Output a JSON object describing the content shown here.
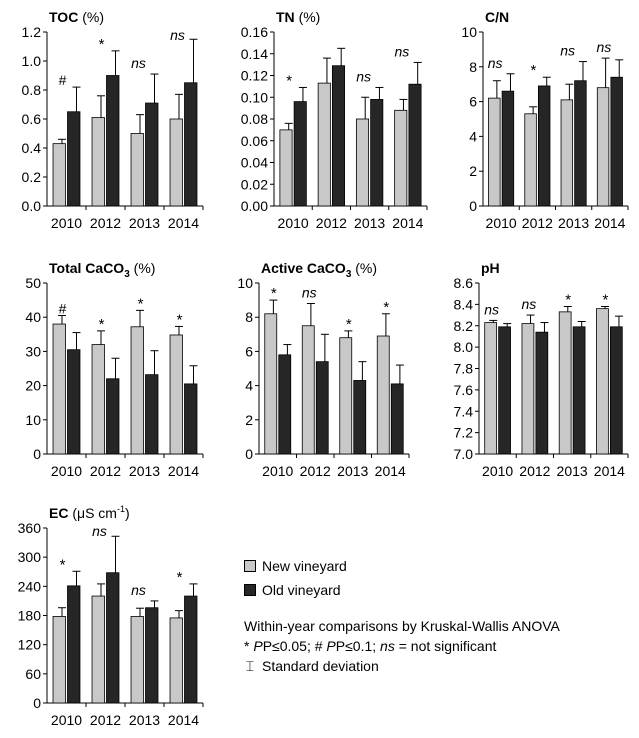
{
  "colors": {
    "new": "#c8c8c8",
    "old": "#262626"
  },
  "legend": {
    "new_label": "New vineyard",
    "old_label": "Old vineyard",
    "note_line1": "Within-year comparisons by Kruskal-Wallis ANOVA",
    "p05_symbol": "* ",
    "p05_text": "P≤0.05; # ",
    "p10_text": "P≤0.1; ",
    "ns_text": "ns",
    "ns_desc": " = not significant",
    "sd_glyph": "⌶",
    "sd_text": "Standard deviation"
  },
  "chart_data": [
    {
      "type": "bar",
      "title": "TOC",
      "unit": "(%)",
      "categories": [
        "2010",
        "2012",
        "2013",
        "2014"
      ],
      "ylim": [
        0,
        1.2
      ],
      "yticks": [
        "0.0",
        "0.2",
        "0.4",
        "0.6",
        "0.8",
        "1.0",
        "1.2"
      ],
      "series": [
        {
          "key": "new",
          "values": [
            0.43,
            0.61,
            0.5,
            0.6
          ],
          "errors": [
            0.03,
            0.15,
            0.13,
            0.17
          ]
        },
        {
          "key": "old",
          "values": [
            0.65,
            0.9,
            0.71,
            0.85
          ],
          "errors": [
            0.17,
            0.17,
            0.2,
            0.3
          ]
        }
      ],
      "annotations": [
        "#",
        "*",
        "ns",
        "ns"
      ]
    },
    {
      "type": "bar",
      "title": "TN",
      "unit": "(%)",
      "categories": [
        "2010",
        "2012",
        "2013",
        "2014"
      ],
      "ylim": [
        0,
        0.16
      ],
      "yticks": [
        "0.00",
        "0.02",
        "0.04",
        "0.06",
        "0.08",
        "0.10",
        "0.12",
        "0.14",
        "0.16"
      ],
      "series": [
        {
          "key": "new",
          "values": [
            0.07,
            0.113,
            0.08,
            0.088
          ],
          "errors": [
            0.006,
            0.023,
            0.02,
            0.01
          ]
        },
        {
          "key": "old",
          "values": [
            0.096,
            0.129,
            0.098,
            0.112
          ],
          "errors": [
            0.013,
            0.016,
            0.011,
            0.02
          ]
        }
      ],
      "annotations": [
        "*",
        "",
        "ns",
        "ns"
      ]
    },
    {
      "type": "bar",
      "title": "C/N",
      "unit": "",
      "categories": [
        "2010",
        "2012",
        "2013",
        "2014"
      ],
      "ylim": [
        0,
        10
      ],
      "yticks": [
        "0",
        "2",
        "4",
        "6",
        "8",
        "10"
      ],
      "series": [
        {
          "key": "new",
          "values": [
            6.2,
            5.3,
            6.1,
            6.8
          ],
          "errors": [
            1.0,
            0.4,
            0.9,
            1.7
          ]
        },
        {
          "key": "old",
          "values": [
            6.6,
            6.9,
            7.2,
            7.4
          ],
          "errors": [
            1.0,
            0.5,
            1.1,
            1.0
          ]
        }
      ],
      "annotations": [
        "ns",
        "*",
        "ns",
        "ns"
      ]
    },
    {
      "type": "bar",
      "title": "Total CaCO",
      "title_sub": "3",
      "unit": "(%)",
      "categories": [
        "2010",
        "2012",
        "2013",
        "2014"
      ],
      "ylim": [
        0,
        50
      ],
      "yticks": [
        "0",
        "10",
        "20",
        "30",
        "40",
        "50"
      ],
      "series": [
        {
          "key": "new",
          "values": [
            38.0,
            32.0,
            37.2,
            34.8
          ],
          "errors": [
            2.5,
            4.0,
            4.8,
            2.5
          ]
        },
        {
          "key": "old",
          "values": [
            30.5,
            22.0,
            23.2,
            20.5
          ],
          "errors": [
            5.0,
            6.0,
            7.0,
            5.3
          ]
        }
      ],
      "annotations": [
        "#",
        "*",
        "*",
        "*"
      ]
    },
    {
      "type": "bar",
      "title": "Active CaCO",
      "title_sub": "3",
      "unit": "(%)",
      "categories": [
        "2010",
        "2012",
        "2013",
        "2014"
      ],
      "ylim": [
        0,
        10
      ],
      "yticks": [
        "0",
        "2",
        "4",
        "6",
        "8",
        "10"
      ],
      "series": [
        {
          "key": "new",
          "values": [
            8.2,
            7.5,
            6.8,
            6.9
          ],
          "errors": [
            0.8,
            1.3,
            0.4,
            1.3
          ]
        },
        {
          "key": "old",
          "values": [
            5.8,
            5.4,
            4.3,
            4.1
          ],
          "errors": [
            0.6,
            1.6,
            1.1,
            1.1
          ]
        }
      ],
      "annotations": [
        "*",
        "ns",
        "*",
        "*"
      ]
    },
    {
      "type": "bar",
      "title": "pH",
      "unit": "",
      "categories": [
        "2010",
        "2012",
        "2013",
        "2014"
      ],
      "ylim": [
        7.0,
        8.6
      ],
      "yticks": [
        "7.0",
        "7.2",
        "7.4",
        "7.6",
        "7.8",
        "8.0",
        "8.2",
        "8.4",
        "8.6"
      ],
      "series": [
        {
          "key": "new",
          "values": [
            8.23,
            8.22,
            8.33,
            8.36
          ],
          "errors": [
            0.02,
            0.08,
            0.05,
            0.02
          ]
        },
        {
          "key": "old",
          "values": [
            8.19,
            8.14,
            8.19,
            8.19
          ],
          "errors": [
            0.03,
            0.09,
            0.05,
            0.1
          ]
        }
      ],
      "annotations": [
        "ns",
        "ns",
        "*",
        "*"
      ]
    },
    {
      "type": "bar",
      "title": "EC",
      "unit_pre": "(μS cm",
      "unit_sup": "-1",
      "unit_post": ")",
      "categories": [
        "2010",
        "2012",
        "2013",
        "2014"
      ],
      "ylim": [
        0,
        360
      ],
      "yticks": [
        "0",
        "60",
        "120",
        "180",
        "240",
        "300",
        "360"
      ],
      "series": [
        {
          "key": "new",
          "values": [
            178,
            220,
            178,
            175
          ],
          "errors": [
            18,
            25,
            17,
            15
          ]
        },
        {
          "key": "old",
          "values": [
            241,
            268,
            196,
            220
          ],
          "errors": [
            30,
            75,
            14,
            25
          ]
        }
      ],
      "annotations": [
        "*",
        "ns",
        "ns",
        "*"
      ]
    }
  ]
}
